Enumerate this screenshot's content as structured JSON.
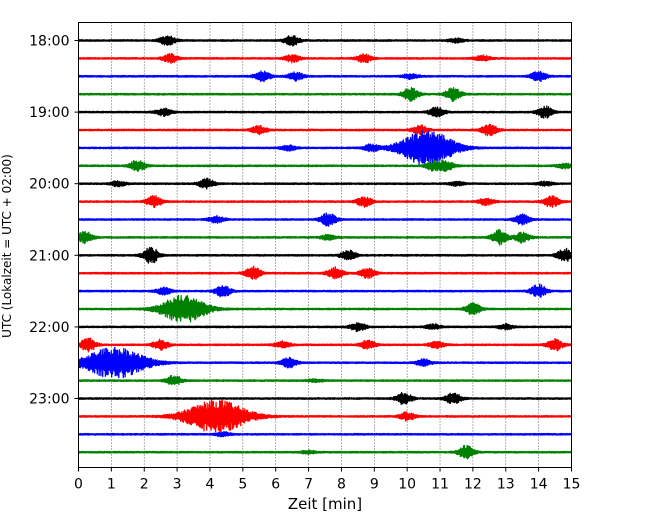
{
  "chart_data": {
    "type": "line",
    "title": "",
    "xlabel": "Zeit  [min]",
    "ylabel": "UTC (Lokalzeit = UTC + 02:00)",
    "xlim": [
      0,
      15
    ],
    "x_ticks": [
      0,
      1,
      2,
      3,
      4,
      5,
      6,
      7,
      8,
      9,
      10,
      11,
      12,
      13,
      14,
      15
    ],
    "x_tick_labels": [
      "0",
      "1",
      "2",
      "3",
      "4",
      "5",
      "6",
      "7",
      "8",
      "9",
      "10",
      "11",
      "12",
      "13",
      "14",
      "15"
    ],
    "y_tick_labels": [
      "18:00",
      "19:00",
      "20:00",
      "21:00",
      "22:00",
      "23:00"
    ],
    "y_tick_trace_index": [
      0,
      4,
      8,
      12,
      16,
      20
    ],
    "grid_x": true,
    "trace_minutes": 15,
    "colors_cycle": [
      "#000000",
      "#ff0000",
      "#0000ff",
      "#008000"
    ],
    "series": [
      {
        "start": "18:00",
        "color": "#000000",
        "events": [
          {
            "t": 2.7,
            "amp": 0.3
          },
          {
            "t": 6.5,
            "amp": 0.3
          },
          {
            "t": 11.5,
            "amp": 0.12
          }
        ]
      },
      {
        "start": "18:15",
        "color": "#ff0000",
        "events": [
          {
            "t": 2.8,
            "amp": 0.25
          },
          {
            "t": 6.5,
            "amp": 0.22
          },
          {
            "t": 8.7,
            "amp": 0.25
          },
          {
            "t": 12.3,
            "amp": 0.18
          }
        ]
      },
      {
        "start": "18:30",
        "color": "#0000ff",
        "events": [
          {
            "t": 5.6,
            "amp": 0.3
          },
          {
            "t": 6.6,
            "amp": 0.25
          },
          {
            "t": 10.1,
            "amp": 0.15
          },
          {
            "t": 14.0,
            "amp": 0.3
          }
        ]
      },
      {
        "start": "18:45",
        "color": "#008000",
        "events": [
          {
            "t": 10.1,
            "amp": 0.4
          },
          {
            "t": 11.4,
            "amp": 0.4
          }
        ]
      },
      {
        "start": "19:00",
        "color": "#000000",
        "events": [
          {
            "t": 2.6,
            "amp": 0.22
          },
          {
            "t": 10.9,
            "amp": 0.3
          },
          {
            "t": 14.2,
            "amp": 0.35
          }
        ]
      },
      {
        "start": "19:15",
        "color": "#ff0000",
        "events": [
          {
            "t": 5.5,
            "amp": 0.25
          },
          {
            "t": 10.4,
            "amp": 0.28
          },
          {
            "t": 12.5,
            "amp": 0.35
          }
        ]
      },
      {
        "start": "19:30",
        "color": "#0000ff",
        "events": [
          {
            "t": 6.4,
            "amp": 0.15
          },
          {
            "t": 8.9,
            "amp": 0.2
          },
          {
            "t": 10.6,
            "amp": 1.1,
            "width": 1.2
          }
        ]
      },
      {
        "start": "19:45",
        "color": "#008000",
        "events": [
          {
            "t": 1.8,
            "amp": 0.35
          },
          {
            "t": 10.8,
            "amp": 0.3
          },
          {
            "t": 11.2,
            "amp": 0.3
          },
          {
            "t": 14.8,
            "amp": 0.15
          }
        ]
      },
      {
        "start": "20:00",
        "color": "#000000",
        "events": [
          {
            "t": 1.2,
            "amp": 0.15
          },
          {
            "t": 3.9,
            "amp": 0.3
          },
          {
            "t": 11.5,
            "amp": 0.12
          },
          {
            "t": 14.2,
            "amp": 0.12
          }
        ]
      },
      {
        "start": "20:15",
        "color": "#ff0000",
        "events": [
          {
            "t": 2.3,
            "amp": 0.35
          },
          {
            "t": 8.7,
            "amp": 0.3
          },
          {
            "t": 12.4,
            "amp": 0.2
          },
          {
            "t": 14.4,
            "amp": 0.35
          }
        ]
      },
      {
        "start": "20:30",
        "color": "#0000ff",
        "events": [
          {
            "t": 4.2,
            "amp": 0.2
          },
          {
            "t": 7.6,
            "amp": 0.4
          },
          {
            "t": 13.5,
            "amp": 0.3
          }
        ]
      },
      {
        "start": "20:45",
        "color": "#008000",
        "events": [
          {
            "t": 0.2,
            "amp": 0.35
          },
          {
            "t": 7.6,
            "amp": 0.15
          },
          {
            "t": 12.8,
            "amp": 0.45
          },
          {
            "t": 13.5,
            "amp": 0.3
          }
        ]
      },
      {
        "start": "21:00",
        "color": "#000000",
        "events": [
          {
            "t": 2.2,
            "amp": 0.5
          },
          {
            "t": 8.2,
            "amp": 0.3
          },
          {
            "t": 14.8,
            "amp": 0.4
          }
        ]
      },
      {
        "start": "21:15",
        "color": "#ff0000",
        "events": [
          {
            "t": 5.3,
            "amp": 0.4
          },
          {
            "t": 7.8,
            "amp": 0.35
          },
          {
            "t": 8.8,
            "amp": 0.3
          }
        ]
      },
      {
        "start": "21:30",
        "color": "#0000ff",
        "events": [
          {
            "t": 2.6,
            "amp": 0.2
          },
          {
            "t": 4.4,
            "amp": 0.35
          },
          {
            "t": 14.0,
            "amp": 0.4
          }
        ]
      },
      {
        "start": "21:45",
        "color": "#008000",
        "events": [
          {
            "t": 3.2,
            "amp": 0.85,
            "width": 1.0
          },
          {
            "t": 12.0,
            "amp": 0.35
          }
        ]
      },
      {
        "start": "22:00",
        "color": "#000000",
        "events": [
          {
            "t": 8.5,
            "amp": 0.25
          },
          {
            "t": 10.8,
            "amp": 0.15
          },
          {
            "t": 13.0,
            "amp": 0.15
          }
        ]
      },
      {
        "start": "22:15",
        "color": "#ff0000",
        "events": [
          {
            "t": 0.3,
            "amp": 0.4
          },
          {
            "t": 2.5,
            "amp": 0.3
          },
          {
            "t": 6.2,
            "amp": 0.2
          },
          {
            "t": 8.8,
            "amp": 0.25
          },
          {
            "t": 10.9,
            "amp": 0.2
          },
          {
            "t": 14.5,
            "amp": 0.35
          }
        ]
      },
      {
        "start": "22:30",
        "color": "#0000ff",
        "events": [
          {
            "t": 1.1,
            "amp": 0.95,
            "width": 1.4
          },
          {
            "t": 6.4,
            "amp": 0.3
          },
          {
            "t": 10.5,
            "amp": 0.2
          }
        ]
      },
      {
        "start": "22:45",
        "color": "#008000",
        "events": [
          {
            "t": 2.9,
            "amp": 0.3
          },
          {
            "t": 7.2,
            "amp": 0.08
          }
        ]
      },
      {
        "start": "23:00",
        "color": "#000000",
        "events": [
          {
            "t": 9.9,
            "amp": 0.35
          },
          {
            "t": 11.4,
            "amp": 0.35
          }
        ]
      },
      {
        "start": "23:15",
        "color": "#ff0000",
        "events": [
          {
            "t": 4.2,
            "amp": 1.0,
            "width": 1.4
          },
          {
            "t": 10.0,
            "amp": 0.25
          }
        ]
      },
      {
        "start": "23:30",
        "color": "#0000ff",
        "events": [
          {
            "t": 4.4,
            "amp": 0.12
          }
        ]
      },
      {
        "start": "23:45",
        "color": "#008000",
        "events": [
          {
            "t": 7.0,
            "amp": 0.1
          },
          {
            "t": 11.8,
            "amp": 0.4
          }
        ]
      }
    ]
  }
}
